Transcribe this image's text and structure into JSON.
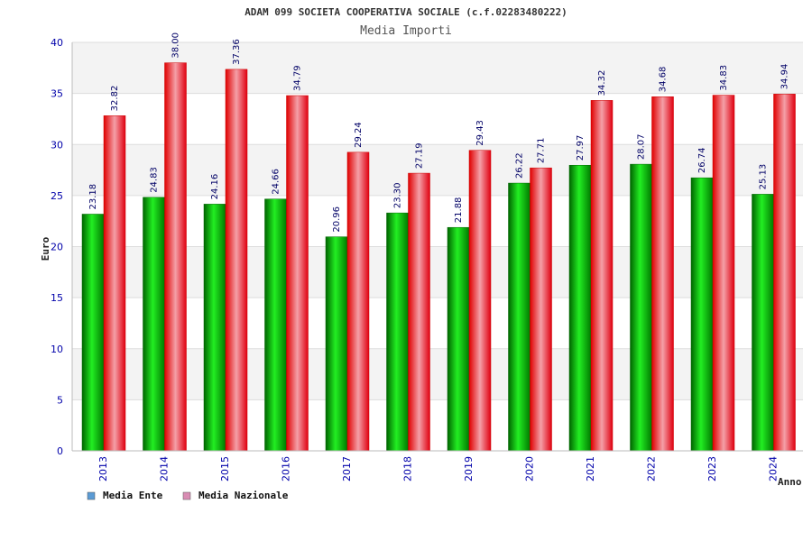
{
  "chart_data": {
    "type": "bar",
    "title": "ADAM 099 SOCIETA COOPERATIVA SOCIALE (c.f.02283480222)",
    "subtitle": "Media Importi",
    "xlabel": "Anno",
    "ylabel": "Euro",
    "ylim": [
      0,
      40
    ],
    "yticks": [
      0,
      5,
      10,
      15,
      20,
      25,
      30,
      35,
      40
    ],
    "grid": true,
    "legend_position": "bottom-left",
    "categories": [
      "2013",
      "2014",
      "2015",
      "2016",
      "2017",
      "2018",
      "2019",
      "2020",
      "2021",
      "2022",
      "2023",
      "2024"
    ],
    "series": [
      {
        "name": "Media Ente",
        "values": [
          23.18,
          24.83,
          24.16,
          24.66,
          20.96,
          23.3,
          21.88,
          26.22,
          27.97,
          28.07,
          26.74,
          25.13
        ],
        "labels": [
          "23.18",
          "24.83",
          "24.16",
          "24.66",
          "20.96",
          "23.30",
          "21.88",
          "26.22",
          "27.97",
          "28.07",
          "26.74",
          "25.13"
        ],
        "legend_color": "#5b9bd5"
      },
      {
        "name": "Media Nazionale",
        "values": [
          32.82,
          38.0,
          37.36,
          34.79,
          29.24,
          27.19,
          29.43,
          27.71,
          34.32,
          34.68,
          34.83,
          34.94
        ],
        "labels": [
          "32.82",
          "38.00",
          "37.36",
          "34.79",
          "29.24",
          "27.19",
          "29.43",
          "27.71",
          "34.32",
          "34.68",
          "34.83",
          "34.94"
        ],
        "legend_color": "#d98cb3"
      }
    ]
  }
}
